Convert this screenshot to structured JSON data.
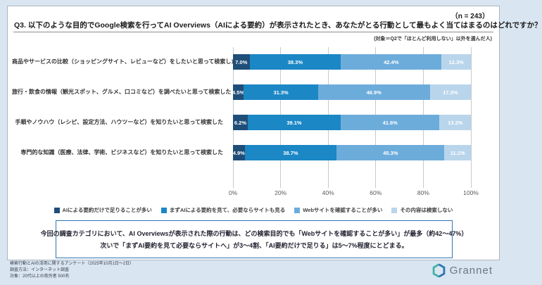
{
  "header": {
    "sample_size": "（n = 243）",
    "title": "Q3. 以下のような目的でGoogle検索を行ってAI Overviews（AIによる要約）が表示されたとき、あなたがとる行動として最もよく当てはまるのはどれですか？",
    "target_note": "(対象＝Q2で「ほとんど利用しない」以外を選んだ人)"
  },
  "chart_data": {
    "type": "bar",
    "stacked": true,
    "orientation": "horizontal",
    "categories": [
      "商品やサービスの比較（ショッピングサイト、レビューなど）をしたいと思って検索した",
      "旅行・飲食の情報（観光スポット、グルメ、口コミなど）を調べたいと思って検索した",
      "手順やノウハウ（レシピ、設定方法、ハウツーなど）を知りたいと思って検索した",
      "専門的な知識（医療、法律、学術、ビジネスなど）を知りたいと思って検索した"
    ],
    "series": [
      {
        "name": "AIによる要約だけで足りることが多い",
        "color": "#1f4e79",
        "values": [
          7.0,
          4.5,
          6.2,
          4.9
        ]
      },
      {
        "name": "まずAIによる要約を見て、必要ならサイトも見る",
        "color": "#1b87c5",
        "values": [
          38.3,
          31.3,
          39.1,
          38.7
        ]
      },
      {
        "name": "Webサイトを確認することが多い",
        "color": "#6cacdb",
        "values": [
          42.4,
          46.9,
          41.6,
          45.3
        ]
      },
      {
        "name": "その内容は検索しない",
        "color": "#b9d5ec",
        "values": [
          12.3,
          17.3,
          13.2,
          11.1
        ]
      }
    ],
    "x_ticks": [
      "0%",
      "20%",
      "40%",
      "60%",
      "80%",
      "100%"
    ],
    "xlim": [
      0,
      100
    ],
    "value_suffix": "%",
    "legend_position": "bottom",
    "grid": true
  },
  "summary": {
    "line1": "今回の調査カテゴリにおいて、AI Overviewsが表示された際の行動は、どの検索目的でも「Webサイトを確認することが多い」が最多（約42～47%）",
    "line2": "次いで「まずAI要約を見て必要ならサイトへ」が3～4割、「AI要約だけで足りる」は5～7%程度にとどまる。"
  },
  "footer": {
    "notes": [
      "検索行動とAIの活用に関するアンケート（2025年10月1日～2日）",
      "調査方法：インターネット調査",
      "対象：20代以上の就労者 500名"
    ],
    "logo_text": "Grannet",
    "logo_colors": {
      "teal": "#45b0a8",
      "blue": "#2e74b5"
    }
  }
}
